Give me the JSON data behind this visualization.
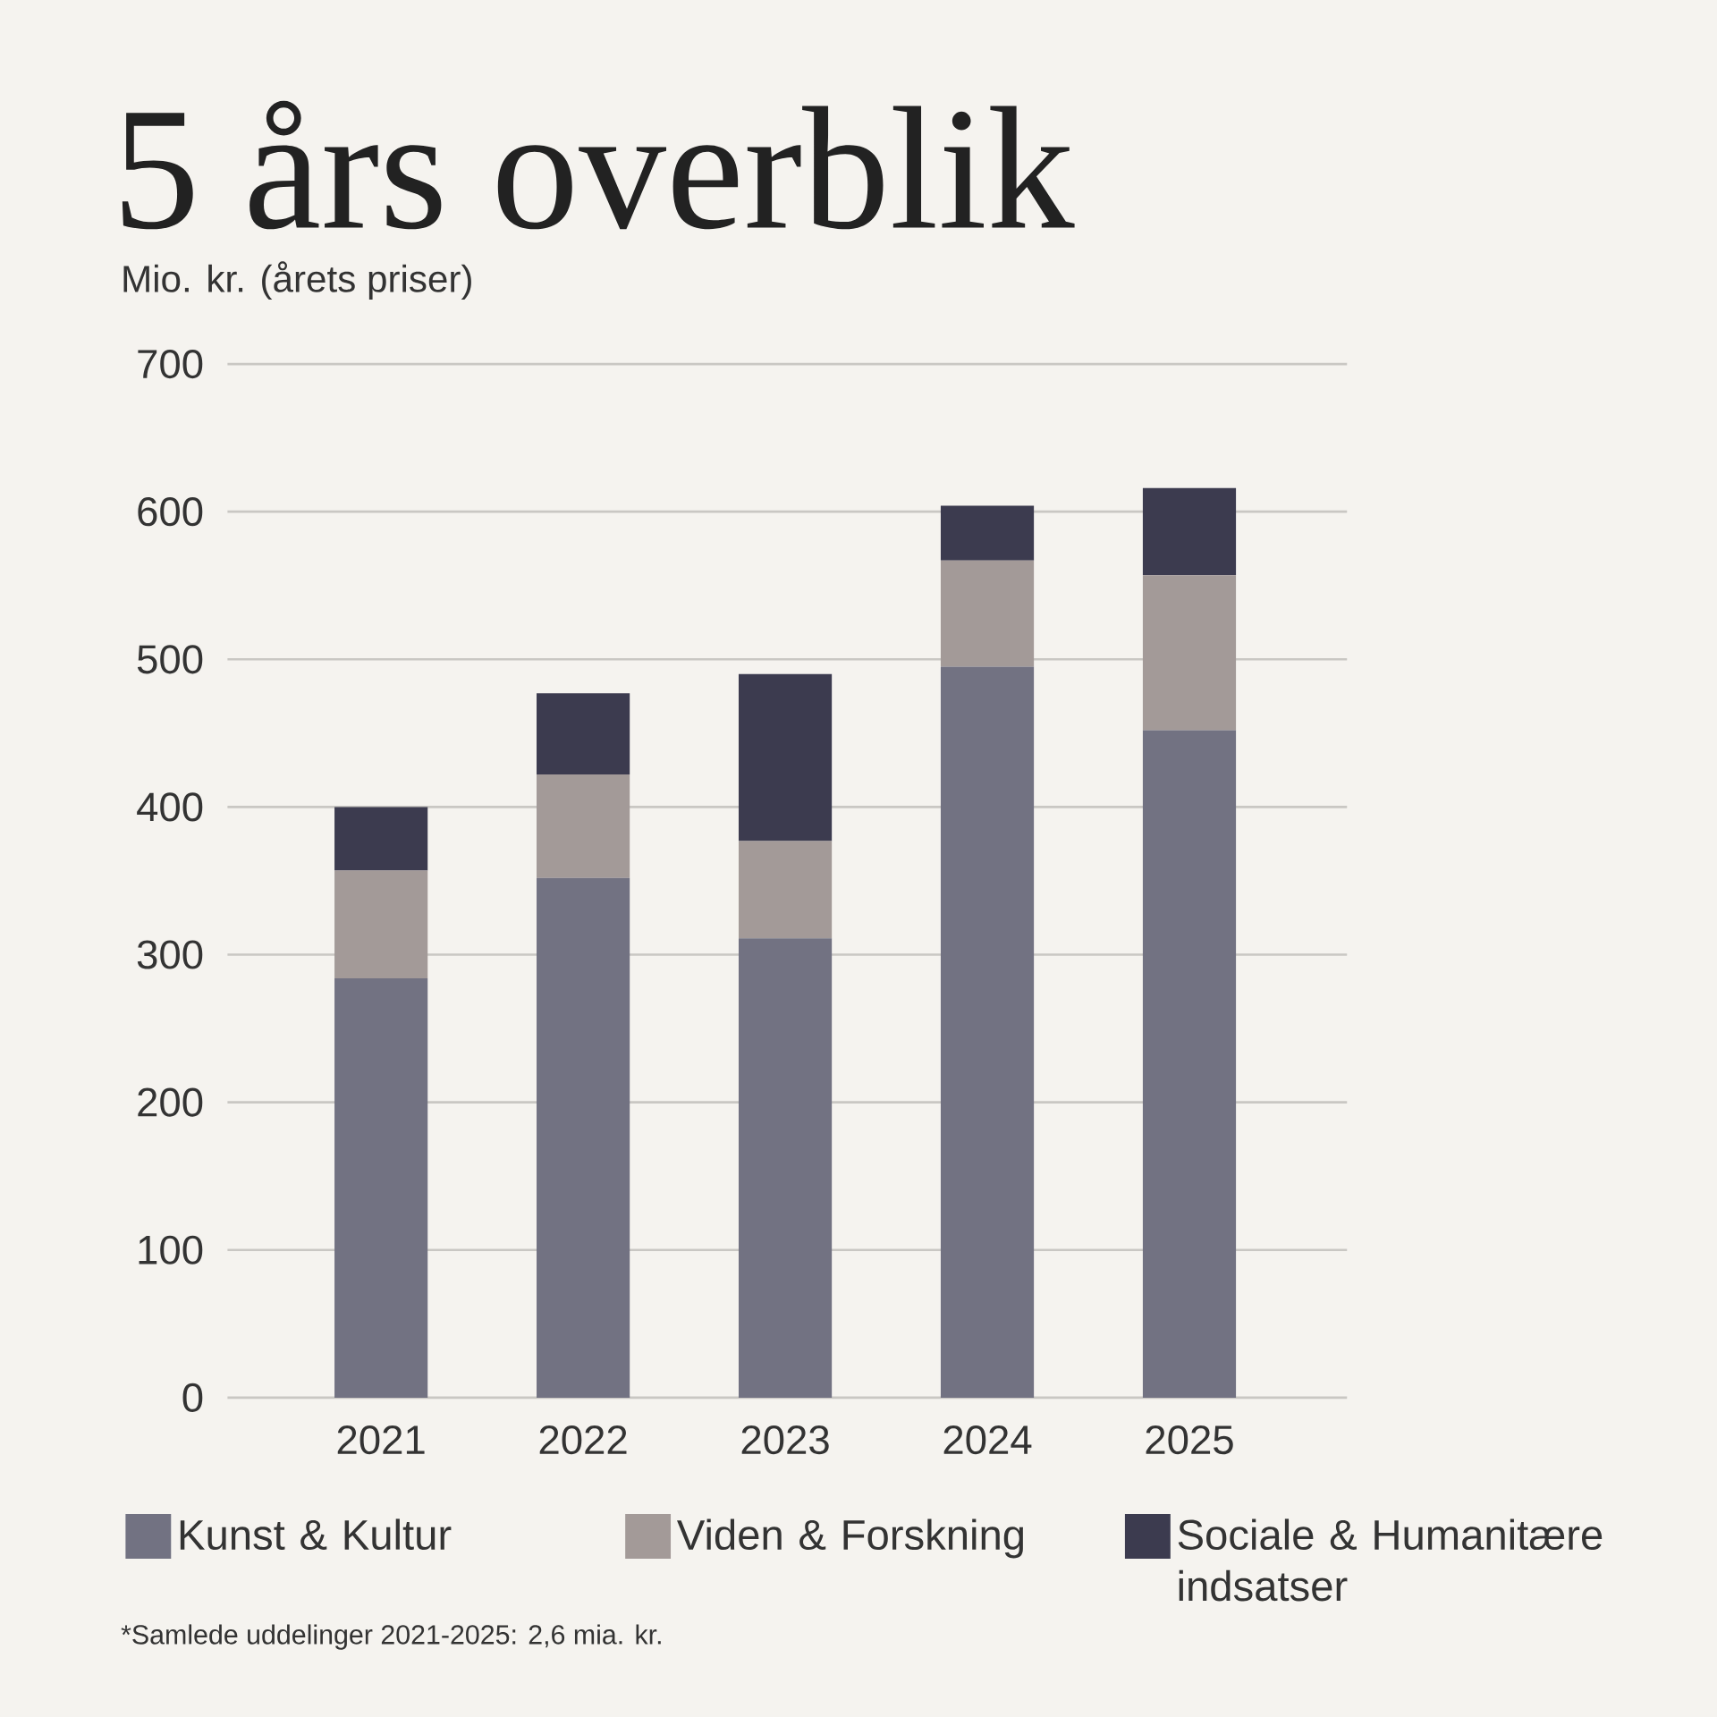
{
  "chart_data": {
    "type": "bar",
    "title": "5 års overblik",
    "ylabel": "Mio. kr. (årets priser)",
    "categories": [
      "2021",
      "2022",
      "2023",
      "2024",
      "2025"
    ],
    "series": [
      {
        "name": "Kunst & Kultur",
        "color": "#727282",
        "values": [
          284,
          352,
          311,
          495,
          452
        ]
      },
      {
        "name": "Viden & Forskning",
        "color": "#a39a98",
        "values": [
          73,
          70,
          66,
          72,
          105
        ]
      },
      {
        "name": "Sociale & Humanitære indsatser",
        "color": "#3c3b4f",
        "values": [
          43,
          55,
          113,
          37,
          59
        ]
      }
    ],
    "stacked": true,
    "ylim": [
      0,
      700
    ],
    "yticks": [
      0,
      100,
      200,
      300,
      400,
      500,
      600,
      700
    ],
    "grid": "y",
    "legend": "bottom",
    "annotations": [
      "*Samlede uddelinger 2021-2025: 2,6 mia. kr."
    ]
  }
}
